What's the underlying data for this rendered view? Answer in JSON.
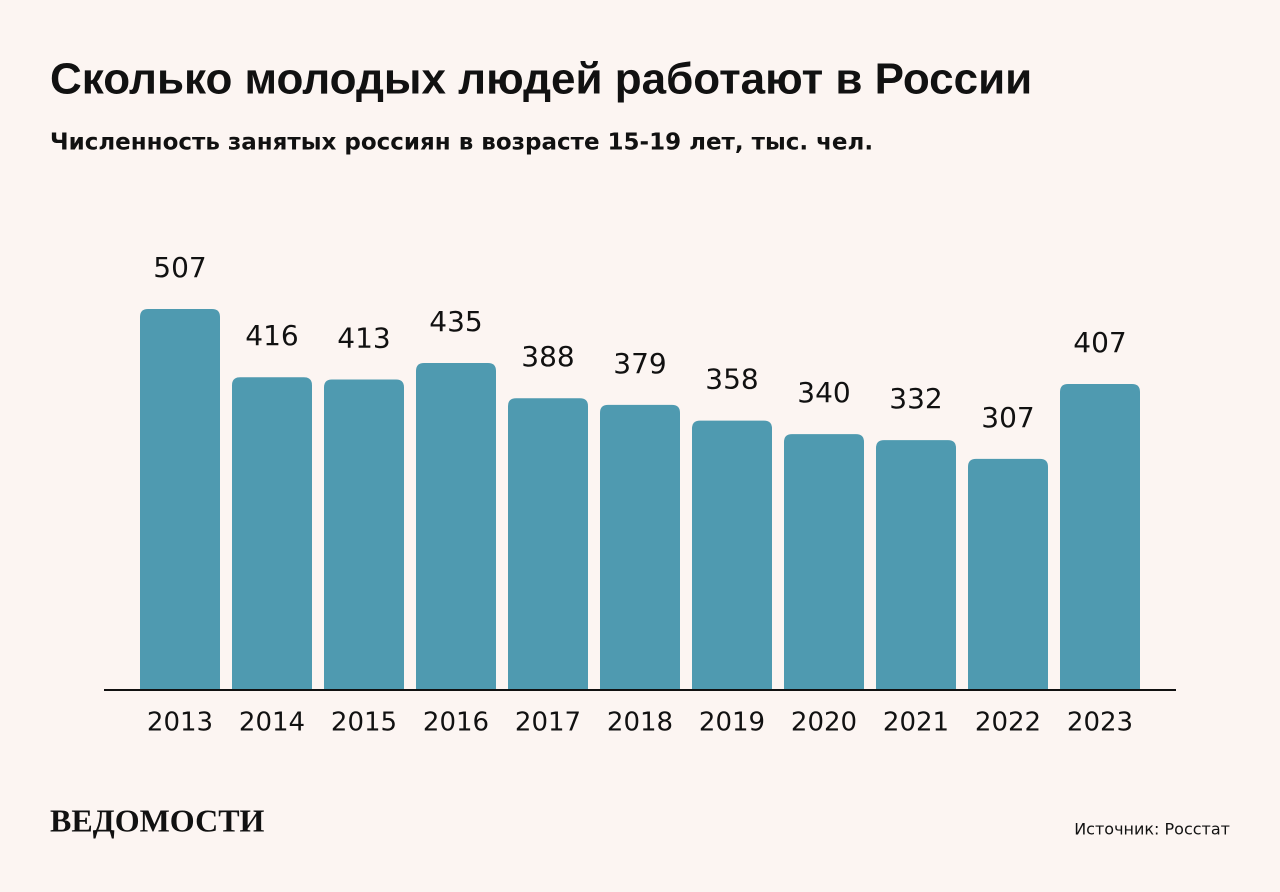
{
  "chart_data": {
    "type": "bar",
    "title": "Сколько молодых людей работают в России",
    "subtitle": "Численность занятых россиян в возрасте 15-19 лет, тыс. чел.",
    "categories": [
      "2013",
      "2014",
      "2015",
      "2016",
      "2017",
      "2018",
      "2019",
      "2020",
      "2021",
      "2022",
      "2023"
    ],
    "values": [
      507,
      416,
      413,
      435,
      388,
      379,
      358,
      340,
      332,
      307,
      407
    ],
    "color": "#4f9ab0",
    "source": "Источник: Росстат",
    "logo": "ВЕДОМОСТИ"
  }
}
